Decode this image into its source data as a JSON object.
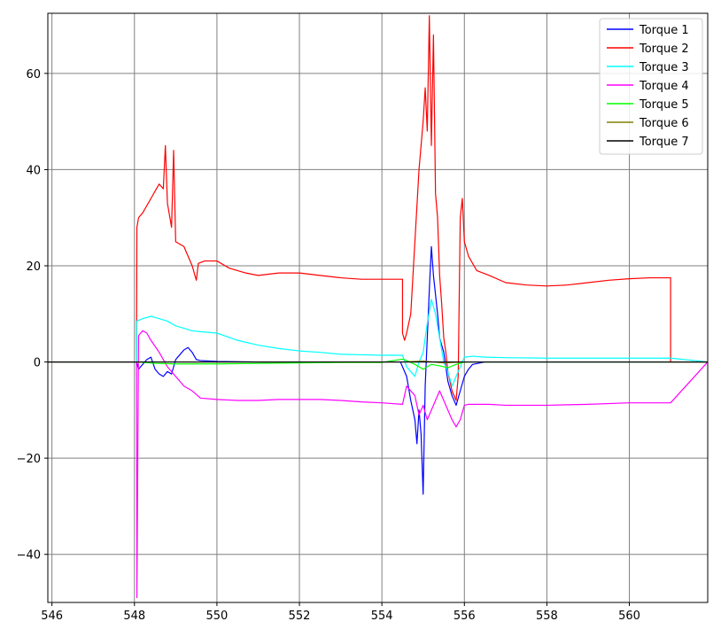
{
  "chart_data": {
    "type": "line",
    "title": "",
    "xlabel": "",
    "ylabel": "",
    "xlim": [
      545.9,
      561.9
    ],
    "ylim": [
      -50,
      72.5
    ],
    "grid": true,
    "legend_position": "top-right",
    "x_ticks": [
      546,
      548,
      550,
      552,
      554,
      556,
      558,
      560
    ],
    "y_ticks": [
      -40,
      -20,
      0,
      20,
      40,
      60
    ],
    "x_tick_labels": [
      "546",
      "548",
      "550",
      "552",
      "554",
      "556",
      "558",
      "560"
    ],
    "y_tick_labels": [
      "−40",
      "−20",
      "0",
      "20",
      "40",
      "60"
    ],
    "series": [
      {
        "name": "Torque 1",
        "color": "#0000ff",
        "x": [
          545.9,
          548.05,
          548.1,
          548.2,
          548.3,
          548.4,
          548.5,
          548.6,
          548.7,
          548.8,
          548.9,
          549.0,
          549.1,
          549.2,
          549.3,
          549.4,
          549.5,
          549.6,
          550.0,
          551.0,
          552.0,
          553.0,
          554.0,
          554.45,
          554.5,
          554.6,
          554.7,
          554.8,
          554.85,
          554.9,
          554.95,
          555.0,
          555.05,
          555.1,
          555.15,
          555.2,
          555.25,
          555.3,
          555.35,
          555.4,
          555.5,
          555.6,
          555.7,
          555.8,
          555.9,
          556.0,
          556.1,
          556.2,
          556.5,
          557.0,
          558.0,
          559.0,
          560.0,
          561.0,
          561.9
        ],
        "y": [
          0,
          0,
          -1.5,
          -0.5,
          0.5,
          1.0,
          -1.5,
          -2.5,
          -3.0,
          -2.0,
          -2.5,
          0.5,
          1.5,
          2.5,
          3.0,
          2.0,
          0.5,
          0.3,
          0.1,
          0,
          0,
          0,
          0,
          0,
          -1.0,
          -3.0,
          -8.0,
          -12.0,
          -17.0,
          -10.0,
          -15.0,
          -27.5,
          -5.0,
          5.0,
          15.0,
          24.0,
          18.0,
          14.0,
          10.0,
          5.0,
          2.0,
          -4.0,
          -7.0,
          -9.0,
          -6.0,
          -3.0,
          -1.5,
          -0.5,
          0,
          0,
          0,
          0,
          0,
          0,
          0
        ]
      },
      {
        "name": "Torque 2",
        "color": "#ff0000",
        "x": [
          545.9,
          548.05,
          548.06,
          548.1,
          548.2,
          548.4,
          548.5,
          548.6,
          548.7,
          548.75,
          548.8,
          548.9,
          548.95,
          549.0,
          549.2,
          549.4,
          549.5,
          549.55,
          549.7,
          550.0,
          550.3,
          550.7,
          551.0,
          551.5,
          552.0,
          552.5,
          553.0,
          553.5,
          554.0,
          554.5,
          554.5,
          554.55,
          554.6,
          554.7,
          554.8,
          554.9,
          555.0,
          555.05,
          555.1,
          555.15,
          555.2,
          555.25,
          555.3,
          555.35,
          555.4,
          555.45,
          555.5,
          555.55,
          555.6,
          555.7,
          555.8,
          555.85,
          555.9,
          555.95,
          556.0,
          556.1,
          556.3,
          556.6,
          557.0,
          557.5,
          558.0,
          558.5,
          559.0,
          559.5,
          560.0,
          560.5,
          561.0,
          561.0,
          561.9
        ],
        "y": [
          0,
          0,
          28.0,
          30.0,
          31.0,
          34.0,
          35.5,
          37.0,
          36.0,
          45.0,
          33.0,
          28.0,
          44.0,
          25.0,
          24.0,
          20.0,
          17.0,
          20.5,
          21.0,
          21.0,
          19.5,
          18.5,
          18.0,
          18.5,
          18.5,
          18.0,
          17.5,
          17.2,
          17.2,
          17.2,
          6.0,
          4.5,
          6.0,
          10.0,
          25.0,
          40.0,
          50.0,
          57.0,
          48.0,
          72.0,
          45.0,
          68.0,
          35.0,
          30.0,
          18.0,
          12.0,
          5.0,
          2.0,
          -2.0,
          -6.0,
          -8.0,
          -3.0,
          30.0,
          34.0,
          25.0,
          22.0,
          19.0,
          18.0,
          16.5,
          16.0,
          15.8,
          16.0,
          16.5,
          17.0,
          17.3,
          17.5,
          17.5,
          0,
          0
        ]
      },
      {
        "name": "Torque 3",
        "color": "#00ffff",
        "x": [
          545.9,
          548.05,
          548.06,
          548.2,
          548.4,
          548.6,
          548.8,
          549.0,
          549.2,
          549.4,
          549.6,
          550.0,
          550.5,
          551.0,
          551.5,
          552.0,
          552.5,
          553.0,
          553.5,
          554.0,
          554.5,
          554.6,
          554.7,
          554.8,
          554.9,
          555.0,
          555.1,
          555.2,
          555.3,
          555.4,
          555.5,
          555.6,
          555.7,
          555.8,
          555.9,
          556.0,
          556.2,
          556.5,
          557.0,
          558.0,
          559.0,
          560.0,
          561.0,
          561.9
        ],
        "y": [
          0,
          0,
          8.5,
          9.0,
          9.5,
          9.0,
          8.5,
          7.5,
          7.0,
          6.5,
          6.3,
          6.0,
          4.5,
          3.5,
          2.8,
          2.3,
          2.0,
          1.6,
          1.5,
          1.4,
          1.4,
          -1.0,
          -2.0,
          -3.0,
          0.0,
          2.0,
          8.0,
          13.0,
          10.0,
          5.0,
          0.0,
          -2.0,
          -5.0,
          -3.0,
          -1.0,
          1.0,
          1.2,
          1.0,
          0.9,
          0.8,
          0.8,
          0.8,
          0.8,
          0
        ]
      },
      {
        "name": "Torque 4",
        "color": "#ff00ff",
        "x": [
          545.9,
          548.05,
          548.06,
          548.1,
          548.2,
          548.3,
          548.4,
          548.6,
          548.8,
          549.0,
          549.2,
          549.4,
          549.6,
          550.0,
          550.5,
          551.0,
          551.5,
          552.0,
          552.5,
          553.0,
          553.5,
          554.0,
          554.5,
          554.6,
          554.7,
          554.8,
          554.9,
          555.0,
          555.1,
          555.2,
          555.3,
          555.4,
          555.5,
          555.6,
          555.7,
          555.8,
          555.9,
          556.0,
          556.1,
          556.3,
          556.6,
          557.0,
          558.0,
          559.0,
          560.0,
          561.0,
          561.9
        ],
        "y": [
          0,
          0,
          -49.0,
          5.5,
          6.5,
          6.0,
          4.5,
          2.0,
          -1.0,
          -3.0,
          -5.0,
          -6.0,
          -7.5,
          -7.8,
          -8.0,
          -8.0,
          -7.8,
          -7.8,
          -7.8,
          -8.0,
          -8.3,
          -8.5,
          -8.8,
          -5.0,
          -6.0,
          -7.0,
          -11.0,
          -9.0,
          -12.0,
          -10.0,
          -8.0,
          -6.0,
          -8.0,
          -10.0,
          -12.0,
          -13.5,
          -12.0,
          -9.0,
          -8.8,
          -8.8,
          -8.8,
          -9.0,
          -9.0,
          -8.8,
          -8.5,
          -8.5,
          0
        ]
      },
      {
        "name": "Torque 5",
        "color": "#00ff00",
        "x": [
          545.9,
          548.05,
          548.5,
          549.0,
          549.5,
          550.0,
          551.0,
          552.0,
          553.0,
          554.0,
          554.5,
          554.6,
          554.8,
          555.0,
          555.2,
          555.4,
          555.6,
          555.8,
          556.0,
          556.3,
          557.0,
          558.0,
          559.0,
          560.0,
          561.0,
          561.9
        ],
        "y": [
          0,
          0,
          -0.3,
          -0.4,
          -0.4,
          -0.4,
          -0.3,
          -0.2,
          -0.1,
          -0.1,
          0.6,
          0.3,
          -0.5,
          -1.5,
          -0.5,
          -0.8,
          -1.2,
          -0.5,
          0.0,
          0.0,
          0.0,
          0.0,
          0.0,
          0.0,
          0.0,
          0
        ]
      },
      {
        "name": "Torque 6",
        "color": "#808000",
        "x": [
          545.9,
          554.5,
          555.0,
          555.5,
          556.0,
          561.9
        ],
        "y": [
          0,
          0,
          0.2,
          -0.2,
          0,
          0
        ]
      },
      {
        "name": "Torque 7",
        "color": "#000000",
        "x": [
          545.9,
          561.9
        ],
        "y": [
          0,
          0
        ]
      }
    ]
  }
}
